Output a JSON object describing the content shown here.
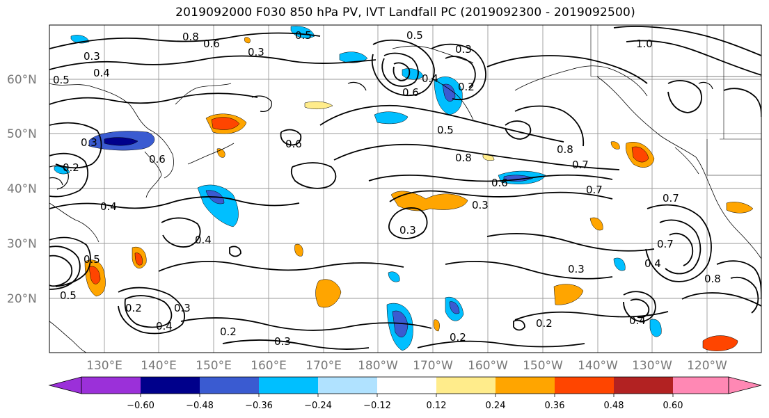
{
  "title": "2019092000 F030 850 hPa PV, IVT Landfall PC (2019092300 - 2019092500)",
  "lat_labels": [
    "60°N",
    "50°N",
    "40°N",
    "30°N",
    "20°N"
  ],
  "lon_labels": [
    "130°E",
    "140°E",
    "150°E",
    "160°E",
    "170°E",
    "180°W",
    "170°W",
    "160°W",
    "150°W",
    "140°W",
    "130°W",
    "120°W"
  ],
  "contour_labels": [
    "0.8",
    "0.6",
    "0.3",
    "0.5",
    "0.5",
    "0.3",
    "0.2",
    "1.0",
    "0.3",
    "0.4",
    "0.6",
    "0.4",
    "0.5",
    "0.6",
    "0.5",
    "0.3",
    "0.3",
    "0.6",
    "0.8",
    "0.8",
    "0.7",
    "0.2",
    "0.4",
    "0.6",
    "0.7",
    "0.3",
    "0.7",
    "0.4",
    "0.4",
    "0.2",
    "0.4",
    "0.3",
    "0.2",
    "0.3",
    "0.2",
    "0.3",
    "0.2",
    "0.8",
    "0.7",
    "0.5",
    "0.4",
    "0.5"
  ],
  "colorbar": {
    "colors": [
      "#9b30d9",
      "#00008b",
      "#3a5bd1",
      "#00bfff",
      "#b0e2ff",
      "#ffffff",
      "#ffec8b",
      "#ffa500",
      "#ff4500",
      "#b22222",
      "#ff88b4"
    ],
    "tick_labels": [
      "−0.60",
      "−0.48",
      "−0.36",
      "−0.24",
      "−0.12",
      "0.12",
      "0.24",
      "0.36",
      "0.48",
      "0.60"
    ]
  }
}
